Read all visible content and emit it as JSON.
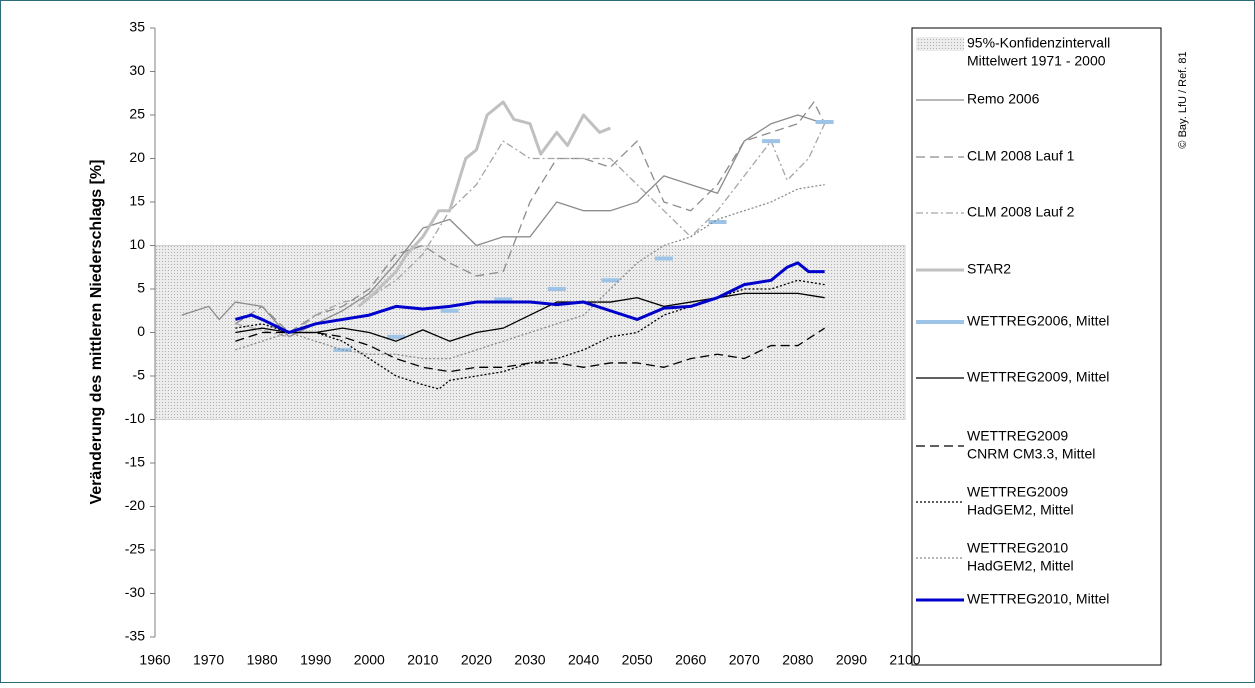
{
  "chart_data": {
    "type": "line",
    "y_label": "Veränderung des mittleren Niederschlags [%]",
    "credit": "© Bay. LfU / Ref. 81",
    "xlim": [
      1960,
      2100
    ],
    "xticks": [
      1960,
      1970,
      1980,
      1990,
      2000,
      2010,
      2020,
      2030,
      2040,
      2050,
      2060,
      2070,
      2080,
      2090,
      2100
    ],
    "ylim": [
      -35,
      35
    ],
    "yticks": [
      -35,
      -30,
      -25,
      -20,
      -15,
      -10,
      -5,
      0,
      5,
      10,
      15,
      20,
      25,
      30,
      35
    ],
    "confidence_band": {
      "name": [
        "95%-Konfidenzintervall",
        "Mittelwert 1971 - 2000"
      ],
      "range": [
        -10,
        10
      ],
      "color": "#d4d4d4"
    },
    "series": [
      {
        "name": "Remo 2006",
        "color": "#8c8c8c",
        "style": "solid",
        "weight": "thin",
        "x": [
          1965,
          1970,
          1972,
          1975,
          1980,
          1985,
          1990,
          1995,
          2000,
          2005,
          2010,
          2015,
          2020,
          2025,
          2030,
          2035,
          2040,
          2045,
          2050,
          2055,
          2060,
          2065,
          2070,
          2075,
          2080,
          2085
        ],
        "values": [
          2,
          3,
          1.5,
          3.5,
          3,
          -0.5,
          1,
          2.5,
          4.5,
          8,
          12,
          13,
          10,
          11,
          11,
          15,
          14,
          14,
          15,
          18,
          17,
          16,
          22,
          24,
          25,
          24
        ]
      },
      {
        "name": "CLM 2008 Lauf 1",
        "color": "#8c8c8c",
        "style": "dashed",
        "weight": "thin",
        "x": [
          1975,
          1980,
          1985,
          1990,
          1995,
          2000,
          2005,
          2010,
          2015,
          2020,
          2025,
          2030,
          2035,
          2040,
          2045,
          2050,
          2055,
          2060,
          2065,
          2070,
          2075,
          2080,
          2083,
          2085
        ],
        "values": [
          1,
          3,
          0,
          2,
          3,
          5,
          9,
          10,
          8,
          6.5,
          7,
          15,
          20,
          20,
          19,
          22,
          15,
          14,
          17,
          22,
          23,
          24,
          26.5,
          24
        ]
      },
      {
        "name": "CLM 2008 Lauf 2",
        "color": "#a6a6a6",
        "style": "dashdot",
        "weight": "thin",
        "x": [
          1975,
          1985,
          1990,
          1995,
          2000,
          2005,
          2010,
          2015,
          2020,
          2025,
          2030,
          2035,
          2040,
          2045,
          2050,
          2055,
          2060,
          2065,
          2070,
          2075,
          2078,
          2082,
          2085
        ],
        "values": [
          1,
          -0.5,
          2,
          3.5,
          4,
          6,
          9,
          14,
          17,
          22,
          20,
          20,
          20,
          20,
          17,
          14,
          11,
          14,
          18,
          22,
          17.5,
          20,
          24
        ]
      },
      {
        "name": "STAR2",
        "color": "#c0c0c0",
        "style": "solid",
        "weight": "thick",
        "x": [
          1998,
          2000,
          2005,
          2007,
          2010,
          2013,
          2015,
          2018,
          2020,
          2022,
          2025,
          2027,
          2030,
          2032,
          2035,
          2037,
          2040,
          2043,
          2045
        ],
        "values": [
          3,
          4,
          7,
          9,
          11,
          14,
          14,
          20,
          21,
          25,
          26.5,
          24.5,
          24,
          20.5,
          23,
          21.5,
          25,
          23,
          23.5
        ]
      },
      {
        "name": "WETTREG2006, Mittel",
        "color": "#9dc3e6",
        "style": "segments",
        "weight": "thick",
        "x": [
          1995,
          2005,
          2015,
          2025,
          2035,
          2045,
          2055,
          2065,
          2075,
          2085
        ],
        "values": [
          -2,
          -0.5,
          2.5,
          3.8,
          5,
          6,
          8.5,
          12.7,
          22,
          24.2
        ]
      },
      {
        "name": "WETTREG2009, Mittel",
        "color": "#000000",
        "style": "solid",
        "weight": "thin",
        "x": [
          1975,
          1980,
          1985,
          1990,
          1995,
          2000,
          2005,
          2010,
          2015,
          2020,
          2025,
          2030,
          2035,
          2040,
          2045,
          2050,
          2055,
          2060,
          2065,
          2070,
          2075,
          2080,
          2085
        ],
        "values": [
          0,
          0.5,
          0,
          0,
          0.5,
          0,
          -1,
          0.3,
          -1,
          0,
          0.5,
          2,
          3.5,
          3.5,
          3.5,
          4,
          3,
          3.5,
          4,
          4.5,
          4.5,
          4.5,
          4
        ]
      },
      {
        "name": [
          "WETTREG2009",
          "CNRM CM3.3, Mittel"
        ],
        "color": "#000000",
        "style": "dashed",
        "weight": "thin",
        "x": [
          1975,
          1980,
          1985,
          1990,
          1995,
          2000,
          2005,
          2010,
          2015,
          2020,
          2025,
          2030,
          2035,
          2040,
          2045,
          2050,
          2055,
          2060,
          2065,
          2070,
          2075,
          2080,
          2085
        ],
        "values": [
          -1,
          0,
          0,
          0,
          -0.5,
          -1.5,
          -3,
          -4,
          -4.5,
          -4,
          -4,
          -3.5,
          -3.5,
          -4,
          -3.5,
          -3.5,
          -4,
          -3,
          -2.5,
          -3,
          -1.5,
          -1.5,
          0.5
        ]
      },
      {
        "name": [
          "WETTREG2009",
          "HadGEM2, Mittel"
        ],
        "color": "#000000",
        "style": "dotted",
        "weight": "thin",
        "x": [
          1975,
          1980,
          1985,
          1990,
          1995,
          2000,
          2005,
          2010,
          2013,
          2015,
          2020,
          2025,
          2030,
          2035,
          2040,
          2045,
          2050,
          2055,
          2060,
          2065,
          2070,
          2075,
          2080,
          2085
        ],
        "values": [
          0.5,
          1,
          0,
          0,
          -1,
          -3,
          -5,
          -6,
          -6.5,
          -5.5,
          -5,
          -4.5,
          -3.5,
          -3,
          -2,
          -0.5,
          0,
          2,
          3,
          4,
          5,
          5,
          6,
          5.5
        ]
      },
      {
        "name": [
          "WETTREG2010",
          "HadGEM2, Mittel"
        ],
        "color": "#8c8c8c",
        "style": "dotted",
        "weight": "thin",
        "x": [
          1975,
          1980,
          1985,
          1990,
          1995,
          2000,
          2005,
          2010,
          2015,
          2020,
          2025,
          2030,
          2035,
          2040,
          2045,
          2050,
          2055,
          2060,
          2065,
          2070,
          2075,
          2080,
          2085
        ],
        "values": [
          -2,
          -1,
          0,
          -1,
          -2,
          -2.5,
          -2.5,
          -3,
          -3,
          -2,
          -1,
          0,
          1,
          2,
          5,
          8,
          10,
          11,
          13,
          14,
          15,
          16.5,
          17
        ]
      },
      {
        "name": "WETTREG2010, Mittel",
        "color": "#0000cc",
        "style": "solid",
        "weight": "thick",
        "x": [
          1975,
          1978,
          1980,
          1985,
          1990,
          1995,
          2000,
          2005,
          2010,
          2015,
          2020,
          2025,
          2030,
          2035,
          2040,
          2045,
          2050,
          2055,
          2060,
          2065,
          2070,
          2075,
          2078,
          2080,
          2082,
          2085
        ],
        "values": [
          1.5,
          2,
          1.5,
          0,
          1,
          1.5,
          2,
          3,
          2.7,
          3,
          3.5,
          3.5,
          3.5,
          3.2,
          3.5,
          2.5,
          1.5,
          2.8,
          3,
          4,
          5.5,
          6,
          7.5,
          8,
          7,
          7
        ]
      }
    ]
  }
}
